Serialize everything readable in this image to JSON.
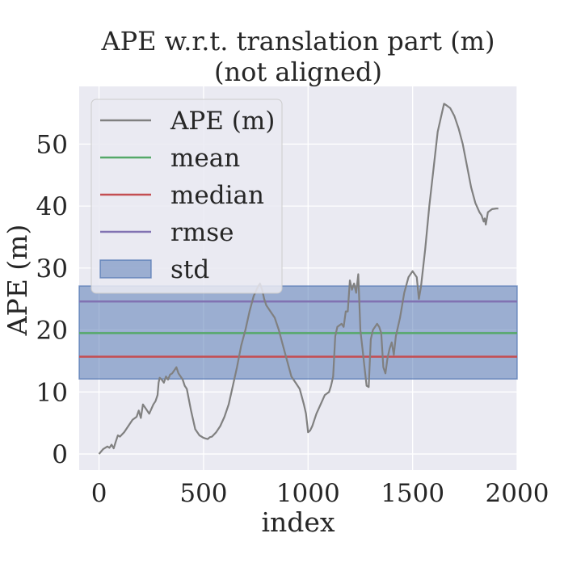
{
  "chart_data": {
    "type": "line",
    "title_lines": [
      "APE w.r.t. translation part (m)",
      "(not aligned)"
    ],
    "xlabel": "index",
    "ylabel": "APE (m)",
    "xlim": [
      -95,
      2000
    ],
    "ylim": [
      -2.6,
      59.3
    ],
    "xticks": [
      0,
      500,
      1000,
      1500,
      2000
    ],
    "yticks": [
      0,
      10,
      20,
      30,
      40,
      50
    ],
    "grid": true,
    "legend_position": "top-left",
    "colors": {
      "background": "#eaeaf2",
      "grid": "#ffffff",
      "ape": "#808080",
      "mean": "#55a868",
      "median": "#c44e52",
      "rmse": "#8172b2",
      "std": "#4c72b0"
    },
    "stats": {
      "mean": 19.5,
      "median": 15.7,
      "rmse": 24.6,
      "std_low": 12.1,
      "std_high": 27.1
    },
    "legend": [
      {
        "key": "ape",
        "label": "APE (m)",
        "kind": "line"
      },
      {
        "key": "mean",
        "label": "mean",
        "kind": "line"
      },
      {
        "key": "median",
        "label": "median",
        "kind": "line"
      },
      {
        "key": "rmse",
        "label": "rmse",
        "kind": "line"
      },
      {
        "key": "std",
        "label": "std",
        "kind": "patch"
      }
    ],
    "series": [
      {
        "key": "ape",
        "x": [
          0,
          20,
          40,
          50,
          60,
          70,
          80,
          90,
          100,
          120,
          140,
          160,
          180,
          190,
          200,
          210,
          220,
          240,
          260,
          270,
          280,
          285,
          290,
          300,
          310,
          320,
          330,
          340,
          350,
          360,
          370,
          380,
          390,
          400,
          410,
          420,
          440,
          450,
          460,
          480,
          500,
          510,
          520,
          530,
          540,
          560,
          580,
          600,
          620,
          640,
          660,
          680,
          700,
          720,
          740,
          760,
          770,
          780,
          790,
          800,
          820,
          840,
          860,
          880,
          900,
          920,
          940,
          960,
          980,
          990,
          1000,
          1010,
          1020,
          1040,
          1060,
          1080,
          1100,
          1110,
          1120,
          1130,
          1140,
          1160,
          1170,
          1180,
          1190,
          1200,
          1210,
          1220,
          1230,
          1240,
          1250,
          1260,
          1270,
          1280,
          1290,
          1300,
          1310,
          1320,
          1330,
          1340,
          1350,
          1360,
          1370,
          1380,
          1390,
          1400,
          1410,
          1420,
          1440,
          1460,
          1480,
          1500,
          1510,
          1520,
          1530,
          1540,
          1560,
          1580,
          1600,
          1620,
          1640,
          1650,
          1660,
          1680,
          1700,
          1720,
          1740,
          1760,
          1780,
          1800,
          1820,
          1830,
          1840,
          1845,
          1850,
          1860,
          1880,
          1900,
          1910
        ],
        "values": [
          0,
          0.8,
          1.2,
          1.0,
          1.5,
          0.9,
          2.0,
          3.0,
          2.8,
          3.5,
          4.5,
          5.5,
          6.0,
          7.0,
          5.8,
          8.0,
          7.5,
          6.5,
          8.0,
          8.5,
          9.5,
          11.5,
          12.3,
          12.0,
          11.5,
          12.5,
          12.0,
          12.8,
          13.0,
          13.5,
          14.0,
          13.0,
          12.5,
          12.0,
          11.0,
          10.5,
          7.0,
          5.5,
          4.0,
          3.0,
          2.6,
          2.5,
          2.4,
          2.7,
          2.8,
          3.5,
          4.5,
          6.0,
          8.0,
          11.0,
          14.0,
          17.5,
          20.0,
          23.0,
          25.5,
          27.0,
          27.5,
          26.5,
          25.0,
          24.0,
          23.0,
          22.0,
          20.0,
          17.5,
          15.0,
          12.5,
          11.5,
          10.5,
          8.0,
          6.5,
          3.5,
          3.8,
          4.5,
          6.5,
          8.0,
          9.5,
          10.0,
          11.0,
          12.5,
          19.0,
          20.5,
          21.0,
          20.5,
          23.0,
          23.0,
          28.0,
          26.5,
          27.5,
          26.0,
          29.0,
          20.0,
          17.0,
          14.0,
          11.0,
          10.8,
          18.5,
          20.0,
          20.5,
          21.0,
          20.5,
          19.5,
          14.0,
          13.0,
          15.5,
          17.0,
          18.0,
          16.0,
          19.0,
          22.0,
          26.0,
          28.5,
          29.5,
          29.0,
          28.5,
          25.0,
          27.0,
          33.0,
          40.0,
          46.0,
          52.0,
          55.0,
          56.5,
          56.3,
          55.8,
          54.5,
          52.5,
          50.0,
          46.5,
          43.0,
          40.5,
          39.0,
          38.5,
          37.5,
          38.0,
          37.0,
          39.0,
          39.5,
          39.6,
          39.6
        ]
      }
    ]
  }
}
